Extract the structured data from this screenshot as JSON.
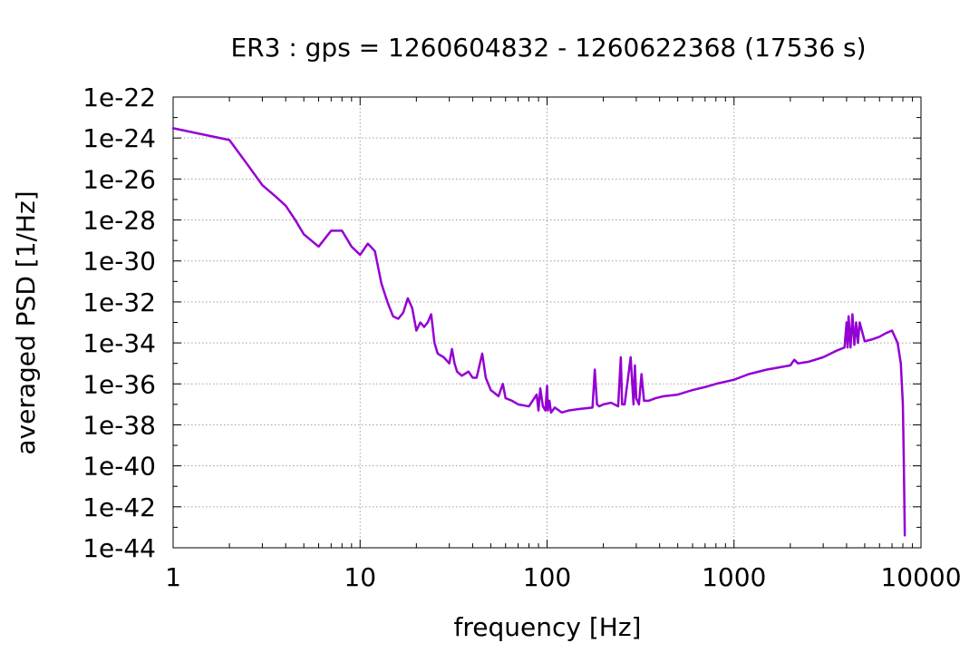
{
  "chart_data": {
    "type": "line",
    "title": "ER3 : gps = 1260604832 - 1260622368 (17536 s)",
    "xlabel": "frequency [Hz]",
    "ylabel": "averaged PSD [1/Hz]",
    "xscale": "log",
    "yscale": "log",
    "xlim": [
      1,
      10000
    ],
    "ylim": [
      1e-44,
      1e-22
    ],
    "grid": true,
    "legend": "none",
    "x_ticks": [
      1,
      10,
      100,
      1000,
      10000
    ],
    "x_tick_labels": [
      "1",
      "10",
      "100",
      "1000",
      "10000"
    ],
    "y_ticks": [
      1e-22,
      1e-24,
      1e-26,
      1e-28,
      1e-30,
      1e-32,
      1e-34,
      1e-36,
      1e-38,
      1e-40,
      1e-42,
      1e-44
    ],
    "y_tick_labels": [
      "1e-22",
      "1e-24",
      "1e-26",
      "1e-28",
      "1e-30",
      "1e-32",
      "1e-34",
      "1e-36",
      "1e-38",
      "1e-40",
      "1e-42",
      "1e-44"
    ],
    "series": [
      {
        "color": "#9400d3",
        "x": [
          1,
          2,
          2.5,
          3,
          3.5,
          4,
          4.5,
          5,
          6,
          7,
          8,
          9,
          10,
          11,
          12,
          13,
          14,
          15,
          16,
          17,
          18,
          19,
          20,
          21,
          22,
          23,
          24,
          25,
          26,
          28,
          30,
          31,
          32,
          33,
          35,
          38,
          40,
          42,
          45,
          47,
          50,
          55,
          58,
          60,
          65,
          70,
          80,
          88,
          90,
          92,
          95,
          98,
          100,
          101,
          103,
          105,
          110,
          120,
          130,
          150,
          175,
          180,
          185,
          190,
          200,
          220,
          240,
          248,
          252,
          260,
          280,
          290,
          295,
          300,
          310,
          320,
          330,
          350,
          380,
          420,
          500,
          600,
          700,
          800,
          1000,
          1200,
          1500,
          2000,
          2100,
          2200,
          2500,
          3000,
          3500,
          3900,
          4000,
          4050,
          4100,
          4200,
          4300,
          4400,
          4500,
          4600,
          4700,
          5000,
          5500,
          6000,
          6500,
          7000,
          7500,
          7800,
          8000,
          8100,
          8192
        ],
        "y": [
          3e-24,
          8e-25,
          5e-26,
          5e-27,
          1.5e-27,
          5e-28,
          1e-28,
          2e-29,
          5e-30,
          3e-29,
          3e-29,
          5e-30,
          2e-30,
          7e-30,
          3e-30,
          8e-32,
          1e-32,
          2e-33,
          1.5e-33,
          3e-33,
          1.5e-32,
          5e-33,
          4e-34,
          1e-33,
          6e-34,
          1e-33,
          2.5e-33,
          1e-34,
          3e-35,
          2e-35,
          1e-35,
          5e-35,
          1e-35,
          4e-36,
          2.5e-36,
          4e-36,
          2e-36,
          2e-36,
          3e-35,
          2e-36,
          5e-37,
          2.5e-37,
          1e-36,
          2e-37,
          1.5e-37,
          1e-37,
          8e-38,
          3e-37,
          5e-38,
          6e-37,
          8e-38,
          5e-38,
          8e-37,
          5e-38,
          1.5e-37,
          4e-38,
          7e-38,
          4e-38,
          5e-38,
          6e-38,
          7e-38,
          5e-36,
          1e-37,
          8e-38,
          1e-37,
          1.2e-37,
          8e-38,
          2e-35,
          1e-37,
          1e-37,
          2e-35,
          1e-37,
          8e-36,
          2e-37,
          1e-37,
          3e-36,
          1.5e-37,
          1.5e-37,
          2e-37,
          2.5e-37,
          3e-37,
          5e-37,
          7e-37,
          1e-36,
          1.6e-36,
          3e-36,
          5e-36,
          8e-36,
          1.5e-35,
          1e-35,
          1.2e-35,
          2e-35,
          4e-35,
          6e-35,
          1e-33,
          6e-35,
          2e-33,
          6e-35,
          2.5e-33,
          8e-35,
          1e-33,
          1e-34,
          1e-33,
          1.2e-34,
          1.5e-34,
          2e-34,
          3e-34,
          4e-34,
          1e-34,
          1e-35,
          1e-37,
          1e-40,
          4e-44
        ]
      }
    ]
  }
}
